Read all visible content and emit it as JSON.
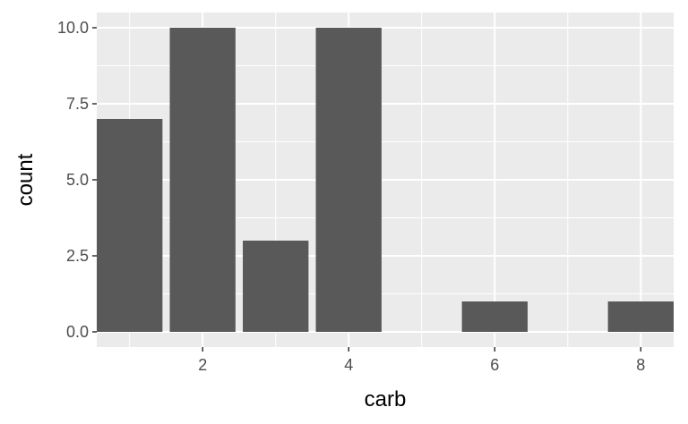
{
  "chart_data": {
    "type": "bar",
    "xlabel": "carb",
    "ylabel": "count",
    "x": [
      1,
      2,
      3,
      4,
      6,
      8
    ],
    "values": [
      7,
      10,
      3,
      10,
      1,
      1
    ],
    "xlim": [
      0.55,
      8.45
    ],
    "ylim": [
      -0.5,
      10.5
    ],
    "x_ticks": [
      2,
      4,
      6,
      8
    ],
    "x_tick_labels": [
      "2",
      "4",
      "6",
      "8"
    ],
    "x_minor_ticks": [
      1,
      3,
      5,
      7
    ],
    "y_ticks": [
      0,
      2.5,
      5,
      7.5,
      10
    ],
    "y_tick_labels": [
      "0.0",
      "2.5",
      "5.0",
      "7.5",
      "10.0"
    ],
    "y_minor_ticks": [
      1.25,
      3.75,
      6.25,
      8.75
    ],
    "bar_width": 0.9,
    "grid": true,
    "colors": {
      "bar": "#595959",
      "panel": "#ebebeb",
      "grid": "#ffffff"
    }
  }
}
